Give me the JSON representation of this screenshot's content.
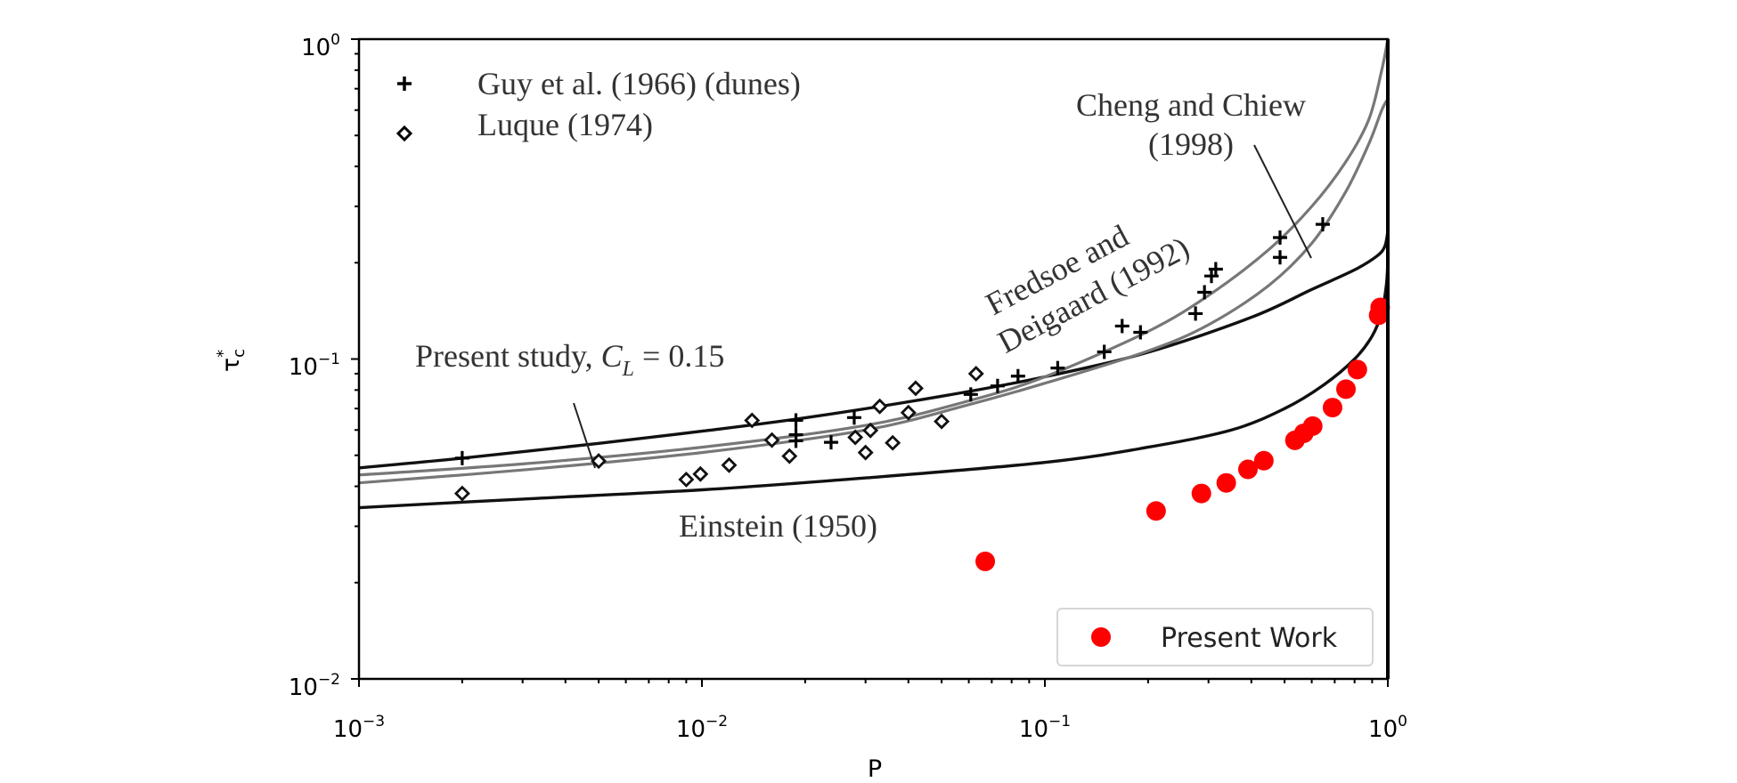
{
  "chart_data": {
    "type": "scatter",
    "title": "",
    "xlabel": "P",
    "ylabel": "τ*c",
    "xscale": "log",
    "yscale": "log",
    "xlim": [
      0.001,
      1
    ],
    "ylim": [
      0.01,
      1
    ],
    "grid": false,
    "x_ticks": [
      {
        "value": 0.001,
        "base": "10",
        "exp": "−3"
      },
      {
        "value": 0.01,
        "base": "10",
        "exp": "−2"
      },
      {
        "value": 0.1,
        "base": "10",
        "exp": "−1"
      },
      {
        "value": 1,
        "base": "10",
        "exp": "0"
      }
    ],
    "y_ticks": [
      {
        "value": 0.01,
        "base": "10",
        "exp": "−2"
      },
      {
        "value": 0.1,
        "base": "10",
        "exp": "−1"
      },
      {
        "value": 1,
        "base": "10",
        "exp": "0"
      }
    ],
    "series": [
      {
        "name": "Guy et al. (1966) (dunes)",
        "kind": "points",
        "marker": "plus",
        "color": "#000000",
        "points": [
          [
            0.002,
            0.049
          ],
          [
            0.0188,
            0.0643
          ],
          [
            0.0188,
            0.058
          ],
          [
            0.0188,
            0.0555
          ],
          [
            0.0238,
            0.0549
          ],
          [
            0.0278,
            0.0656
          ],
          [
            0.0608,
            0.0775
          ],
          [
            0.0728,
            0.0824
          ],
          [
            0.0835,
            0.0884
          ],
          [
            0.109,
            0.0937
          ],
          [
            0.149,
            0.1053
          ],
          [
            0.168,
            0.1268
          ],
          [
            0.19,
            0.1212
          ],
          [
            0.275,
            0.1387
          ],
          [
            0.292,
            0.1617
          ],
          [
            0.306,
            0.1818
          ],
          [
            0.315,
            0.191
          ],
          [
            0.485,
            0.2397
          ],
          [
            0.485,
            0.2079
          ],
          [
            0.646,
            0.2637
          ]
        ]
      },
      {
        "name": "Luque (1974)",
        "kind": "points",
        "marker": "diamond-open",
        "color": "#000000",
        "points": [
          [
            0.002,
            0.038
          ],
          [
            0.005,
            0.048
          ],
          [
            0.009,
            0.042
          ],
          [
            0.0099,
            0.0437
          ],
          [
            0.012,
            0.0466
          ],
          [
            0.014,
            0.0643
          ],
          [
            0.016,
            0.0558
          ],
          [
            0.018,
            0.0497
          ],
          [
            0.028,
            0.0569
          ],
          [
            0.03,
            0.051
          ],
          [
            0.031,
            0.0598
          ],
          [
            0.033,
            0.0711
          ],
          [
            0.036,
            0.0547
          ],
          [
            0.04,
            0.068
          ],
          [
            0.042,
            0.081
          ],
          [
            0.05,
            0.0638
          ],
          [
            0.063,
            0.09
          ]
        ]
      },
      {
        "name": "Present Work",
        "kind": "points",
        "marker": "circle-filled",
        "color": "#ff0000",
        "points": [
          [
            0.067,
            0.0233
          ],
          [
            0.211,
            0.0335
          ],
          [
            0.286,
            0.038
          ],
          [
            0.338,
            0.041
          ],
          [
            0.391,
            0.0452
          ],
          [
            0.435,
            0.0481
          ],
          [
            0.536,
            0.0557
          ],
          [
            0.569,
            0.0586
          ],
          [
            0.604,
            0.0617
          ],
          [
            0.69,
            0.0705
          ],
          [
            0.755,
            0.0805
          ],
          [
            0.815,
            0.0927
          ],
          [
            0.94,
            0.137
          ],
          [
            0.95,
            0.145
          ]
        ]
      },
      {
        "name": "Present study, C_L = 0.15",
        "kind": "line",
        "color": "#111111",
        "points": [
          [
            0.001,
            0.0457
          ],
          [
            0.002,
            0.049
          ],
          [
            0.005,
            0.0545
          ],
          [
            0.01,
            0.0595
          ],
          [
            0.02,
            0.0655
          ],
          [
            0.05,
            0.0765
          ],
          [
            0.1,
            0.088
          ],
          [
            0.2,
            0.105
          ],
          [
            0.4,
            0.135
          ],
          [
            0.6,
            0.165
          ],
          [
            0.8,
            0.19
          ],
          [
            0.93,
            0.21
          ],
          [
            0.98,
            0.225
          ],
          [
            1.0,
            0.25
          ]
        ]
      },
      {
        "name": "Fredsoe and Deigaard (1992)",
        "kind": "line",
        "color": "#777777",
        "points": [
          [
            0.001,
            0.0434
          ],
          [
            0.003,
            0.047
          ],
          [
            0.01,
            0.053
          ],
          [
            0.03,
            0.062
          ],
          [
            0.06,
            0.074
          ],
          [
            0.1,
            0.088
          ],
          [
            0.2,
            0.122
          ],
          [
            0.3,
            0.158
          ],
          [
            0.45,
            0.22
          ],
          [
            0.6,
            0.3
          ],
          [
            0.75,
            0.41
          ],
          [
            0.88,
            0.56
          ],
          [
            0.96,
            0.8
          ],
          [
            1.0,
            1.0
          ]
        ]
      },
      {
        "name": "Cheng and Chiew (1998)",
        "kind": "line",
        "color": "#777777",
        "points": [
          [
            0.001,
            0.041
          ],
          [
            0.003,
            0.045
          ],
          [
            0.01,
            0.051
          ],
          [
            0.03,
            0.06
          ],
          [
            0.06,
            0.072
          ],
          [
            0.1,
            0.084
          ],
          [
            0.2,
            0.106
          ],
          [
            0.3,
            0.128
          ],
          [
            0.45,
            0.17
          ],
          [
            0.6,
            0.23
          ],
          [
            0.75,
            0.33
          ],
          [
            0.88,
            0.47
          ],
          [
            0.96,
            0.6
          ],
          [
            1.0,
            0.65
          ]
        ]
      },
      {
        "name": "Einstein (1950)",
        "kind": "line",
        "color": "#111111",
        "points": [
          [
            0.001,
            0.0343
          ],
          [
            0.003,
            0.0365
          ],
          [
            0.01,
            0.039
          ],
          [
            0.03,
            0.0425
          ],
          [
            0.1,
            0.0475
          ],
          [
            0.2,
            0.053
          ],
          [
            0.35,
            0.06
          ],
          [
            0.5,
            0.07
          ],
          [
            0.65,
            0.083
          ],
          [
            0.8,
            0.1
          ],
          [
            0.9,
            0.118
          ],
          [
            0.96,
            0.14
          ],
          [
            0.99,
            0.17
          ],
          [
            1.0,
            0.2
          ]
        ]
      }
    ],
    "annotations": [
      {
        "text": "Present study, ",
        "italic_part": "C",
        "sub": "L",
        "suffix": " = 0.15",
        "target": "Present study, C_L = 0.15"
      },
      {
        "text": "Einstein (1950)",
        "target": "Einstein (1950)"
      },
      {
        "lines": [
          "Fredsoe and",
          "Deigaard (1992)"
        ],
        "target": "Fredsoe and Deigaard (1992)"
      },
      {
        "lines": [
          "Cheng and Chiew",
          "(1998)"
        ],
        "target": "Cheng and Chiew (1998)"
      }
    ],
    "legends": [
      {
        "placement": "top-left",
        "frame": false,
        "entries": [
          {
            "marker": "plus",
            "label": "Guy et al. (1966) (dunes)"
          },
          {
            "marker": "diamond-open",
            "label": "Luque (1974)"
          }
        ]
      },
      {
        "placement": "bottom-right",
        "frame": true,
        "entries": [
          {
            "marker": "circle-filled",
            "color": "#ff0000",
            "label": "Present Work"
          }
        ]
      }
    ]
  }
}
